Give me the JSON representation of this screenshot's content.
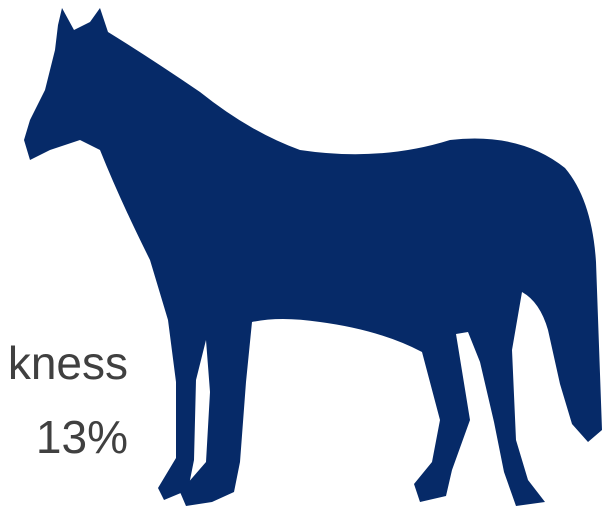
{
  "labels": {
    "category": "kness",
    "share": "13%"
  }
}
